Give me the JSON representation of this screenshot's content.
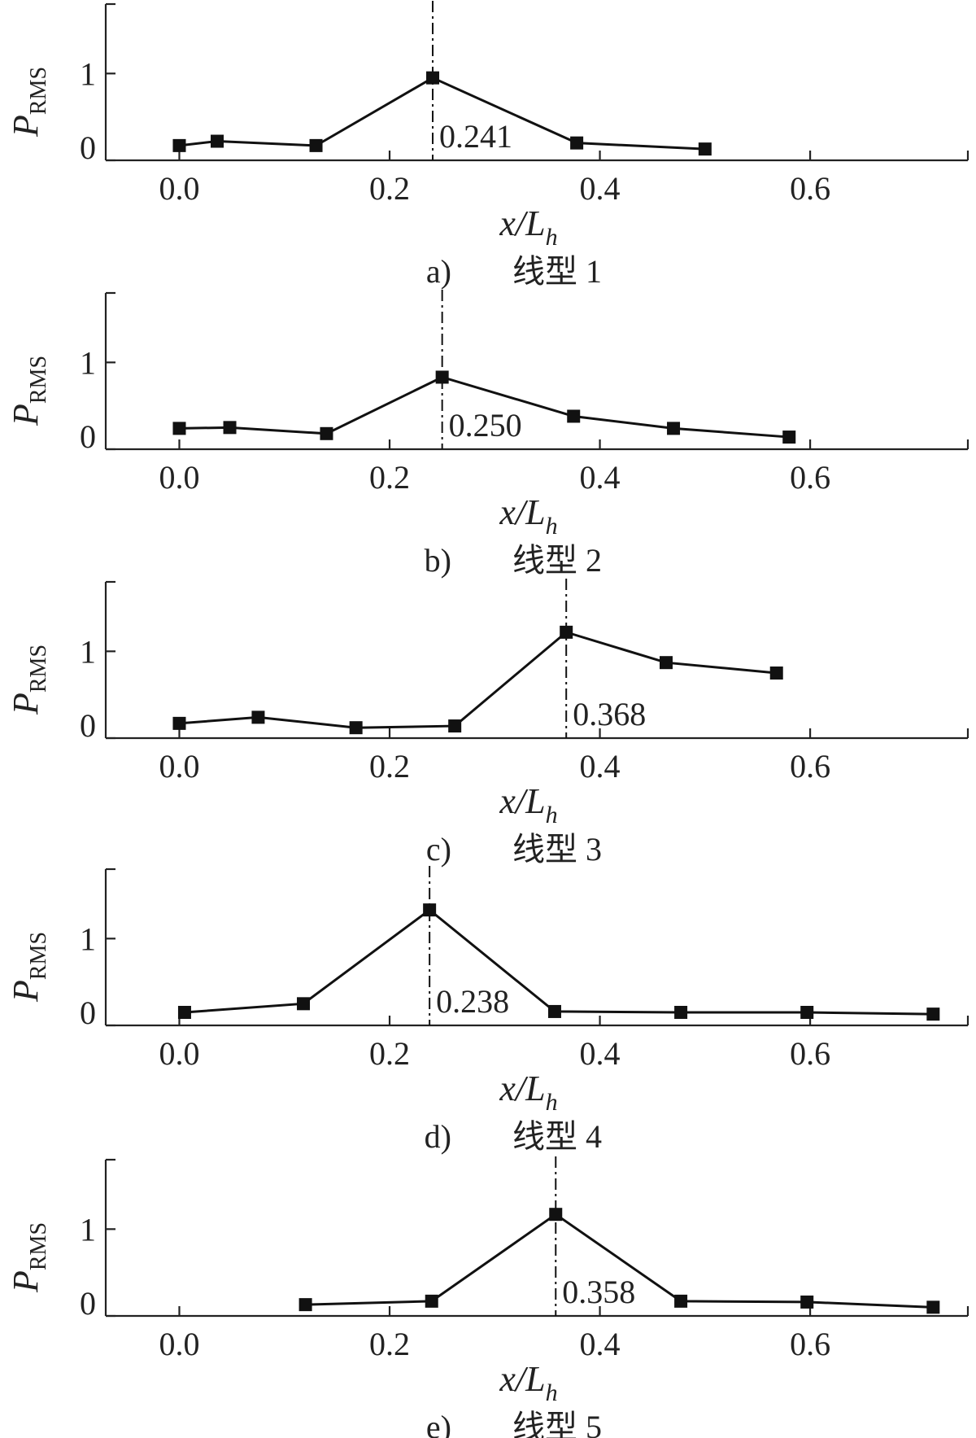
{
  "chart_data": [
    {
      "type": "line",
      "caption_letter": "a)",
      "caption_text": "线型 1",
      "ylabel": "P",
      "ylabel_sub": "RMS",
      "xlabel": "x/L",
      "xlabel_sub": "h",
      "xlim": [
        -0.07,
        0.75
      ],
      "ylim": [
        0,
        1.8
      ],
      "xticks": [
        "0.0",
        "0.2",
        "0.4",
        "0.6"
      ],
      "yticks": [
        "0",
        "1"
      ],
      "x": [
        0.0,
        0.036,
        0.13,
        0.241,
        0.378,
        0.5
      ],
      "y": [
        0.17,
        0.22,
        0.17,
        0.95,
        0.2,
        0.13
      ],
      "peak_x": 0.241,
      "peak_label": "0.241"
    },
    {
      "type": "line",
      "caption_letter": "b)",
      "caption_text": "线型 2",
      "ylabel": "P",
      "ylabel_sub": "RMS",
      "xlabel": "x/L",
      "xlabel_sub": "h",
      "xlim": [
        -0.07,
        0.75
      ],
      "ylim": [
        0,
        1.8
      ],
      "xticks": [
        "0.0",
        "0.2",
        "0.4",
        "0.6"
      ],
      "yticks": [
        "0",
        "1"
      ],
      "x": [
        0.0,
        0.048,
        0.14,
        0.25,
        0.375,
        0.47,
        0.58
      ],
      "y": [
        0.24,
        0.25,
        0.18,
        0.83,
        0.38,
        0.24,
        0.14
      ],
      "peak_x": 0.25,
      "peak_label": "0.250"
    },
    {
      "type": "line",
      "caption_letter": "c)",
      "caption_text": "线型 3",
      "ylabel": "P",
      "ylabel_sub": "RMS",
      "xlabel": "x/L",
      "xlabel_sub": "h",
      "xlim": [
        -0.07,
        0.75
      ],
      "ylim": [
        0,
        1.8
      ],
      "xticks": [
        "0.0",
        "0.2",
        "0.4",
        "0.6"
      ],
      "yticks": [
        "0",
        "1"
      ],
      "x": [
        0.0,
        0.075,
        0.168,
        0.262,
        0.368,
        0.463,
        0.568
      ],
      "y": [
        0.17,
        0.24,
        0.12,
        0.14,
        1.22,
        0.87,
        0.75
      ],
      "peak_x": 0.368,
      "peak_label": "0.368"
    },
    {
      "type": "line",
      "caption_letter": "d)",
      "caption_text": "线型 4",
      "ylabel": "P",
      "ylabel_sub": "RMS",
      "xlabel": "x/L",
      "xlabel_sub": "h",
      "xlim": [
        -0.07,
        0.75
      ],
      "ylim": [
        0,
        1.8
      ],
      "xticks": [
        "0.0",
        "0.2",
        "0.4",
        "0.6"
      ],
      "yticks": [
        "0",
        "1"
      ],
      "x": [
        0.005,
        0.118,
        0.238,
        0.357,
        0.477,
        0.597,
        0.717
      ],
      "y": [
        0.15,
        0.25,
        1.33,
        0.16,
        0.15,
        0.15,
        0.13
      ],
      "peak_x": 0.238,
      "peak_label": "0.238"
    },
    {
      "type": "line",
      "caption_letter": "e)",
      "caption_text": "线型 5",
      "ylabel": "P",
      "ylabel_sub": "RMS",
      "xlabel": "x/L",
      "xlabel_sub": "h",
      "xlim": [
        -0.07,
        0.75
      ],
      "ylim": [
        0,
        1.8
      ],
      "xticks": [
        "0.0",
        "0.2",
        "0.4",
        "0.6"
      ],
      "yticks": [
        "0",
        "1"
      ],
      "x": [
        0.12,
        0.24,
        0.358,
        0.477,
        0.597,
        0.717
      ],
      "y": [
        0.13,
        0.17,
        1.17,
        0.17,
        0.16,
        0.1
      ],
      "peak_x": 0.358,
      "peak_label": "0.358"
    }
  ]
}
